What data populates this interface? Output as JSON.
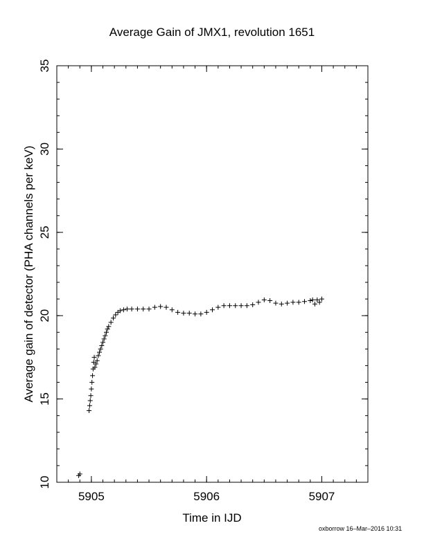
{
  "chart_data": {
    "type": "scatter",
    "title": "Average Gain of JMX1, revolution 1651",
    "xlabel": "Time in IJD",
    "ylabel": "Average gain of detector (PHA channels per keV)",
    "xlim": [
      5904.7,
      5907.4
    ],
    "ylim": [
      10,
      35
    ],
    "xticks": [
      5905,
      5906,
      5907
    ],
    "xtick_labels": [
      "5905",
      "5906",
      "5907"
    ],
    "yticks": [
      10,
      15,
      20,
      25,
      30,
      35
    ],
    "ytick_labels": [
      "10",
      "15",
      "20",
      "25",
      "30",
      "35"
    ],
    "x_minor_step": 0.1,
    "y_minor_step": 1,
    "marker": "+",
    "series": [
      {
        "x": [
          5904.89,
          5904.9,
          5904.98,
          5904.985,
          5904.99,
          5904.995,
          5905.0,
          5905.005,
          5905.01,
          5905.015,
          5905.02,
          5905.025,
          5905.03,
          5905.04,
          5905.05,
          5905.06,
          5905.07,
          5905.08,
          5905.09,
          5905.1,
          5905.11,
          5905.12,
          5905.13,
          5905.14,
          5905.15,
          5905.17,
          5905.19,
          5905.21,
          5905.23,
          5905.25,
          5905.28,
          5905.31,
          5905.35,
          5905.4,
          5905.45,
          5905.5,
          5905.55,
          5905.6,
          5905.65,
          5905.7,
          5905.75,
          5905.8,
          5905.85,
          5905.9,
          5905.95,
          5906.0,
          5906.05,
          5906.1,
          5906.15,
          5906.2,
          5906.25,
          5906.3,
          5906.35,
          5906.4,
          5906.45,
          5906.5,
          5906.55,
          5906.6,
          5906.65,
          5906.7,
          5906.75,
          5906.8,
          5906.85,
          5906.9,
          5906.92,
          5906.94,
          5906.96,
          5906.98,
          5907.0
        ],
        "y": [
          10.4,
          10.5,
          14.3,
          14.6,
          14.9,
          15.2,
          15.6,
          16.0,
          16.4,
          16.8,
          17.2,
          17.5,
          16.9,
          17.1,
          17.3,
          17.6,
          17.8,
          18.0,
          18.2,
          18.4,
          18.6,
          18.8,
          19.0,
          19.2,
          19.35,
          19.6,
          19.85,
          20.05,
          20.2,
          20.3,
          20.35,
          20.4,
          20.4,
          20.4,
          20.4,
          20.4,
          20.5,
          20.55,
          20.5,
          20.35,
          20.2,
          20.15,
          20.15,
          20.1,
          20.1,
          20.2,
          20.35,
          20.5,
          20.6,
          20.6,
          20.6,
          20.6,
          20.6,
          20.65,
          20.8,
          20.95,
          20.9,
          20.75,
          20.7,
          20.75,
          20.8,
          20.8,
          20.85,
          20.9,
          20.95,
          20.7,
          20.95,
          20.8,
          21.0
        ]
      }
    ]
  },
  "footer": "oxborrow 16–Mar–2016 10:31"
}
